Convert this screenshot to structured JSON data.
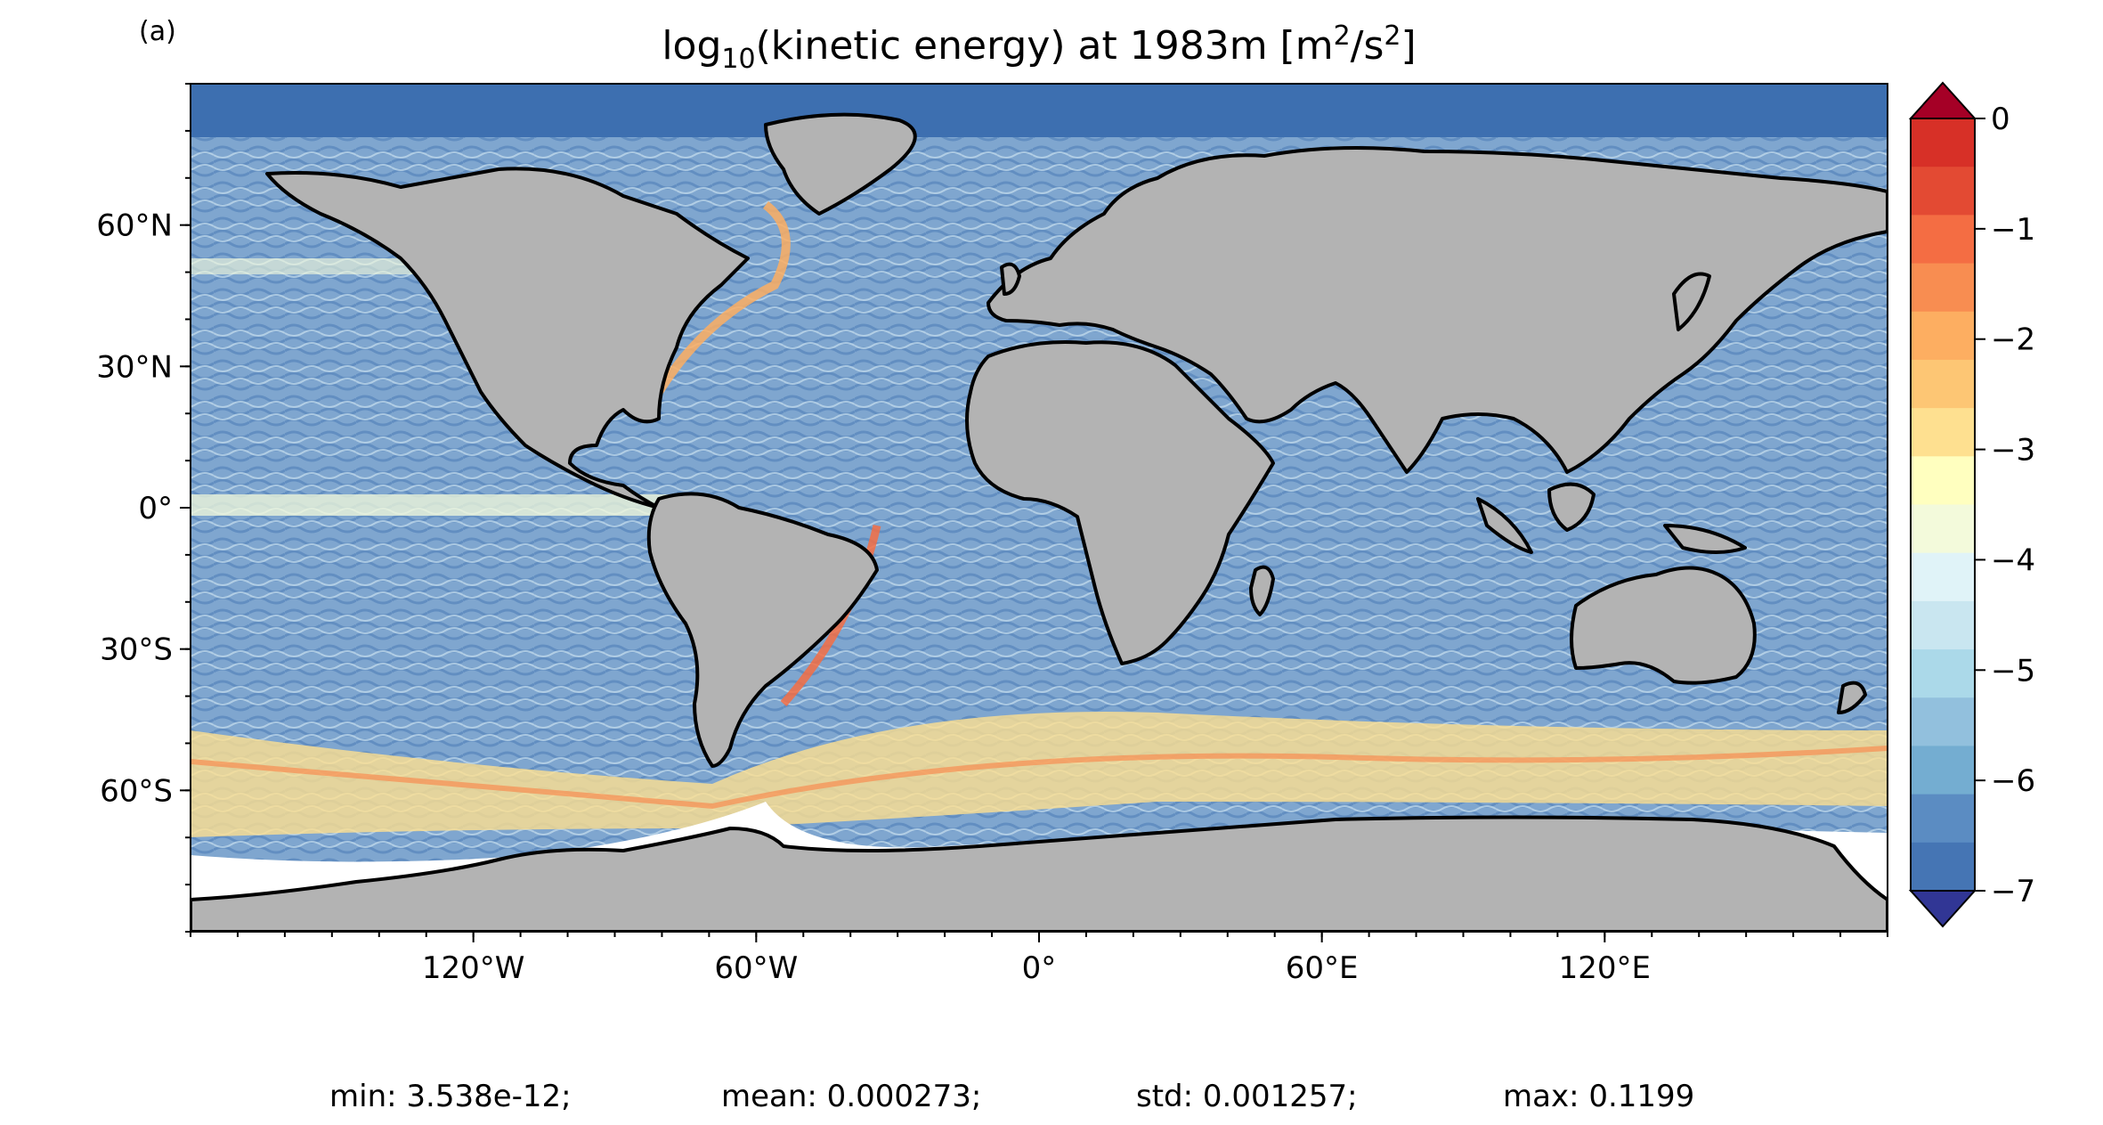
{
  "panel_label": "(a)",
  "title": {
    "prefix": "log",
    "subscript": "10",
    "middle": "(kinetic energy) at 1983m [m",
    "sup1": "2",
    "slash": "/s",
    "sup2": "2",
    "suffix": "]"
  },
  "map": {
    "projection": "plate-carree",
    "land_color": "#b3b3b3",
    "missing_color": "#ffffff",
    "x_ticks": [
      {
        "lon": -120,
        "label": "120°W"
      },
      {
        "lon": -60,
        "label": "60°W"
      },
      {
        "lon": 0,
        "label": "0°"
      },
      {
        "lon": 60,
        "label": "60°E"
      },
      {
        "lon": 120,
        "label": "120°E"
      }
    ],
    "y_ticks": [
      {
        "lat": 60,
        "label": "60°N"
      },
      {
        "lat": 30,
        "label": "30°N"
      },
      {
        "lat": 0,
        "label": "0°"
      },
      {
        "lat": -30,
        "label": "30°S"
      },
      {
        "lat": -60,
        "label": "60°S"
      }
    ],
    "lon_range": [
      -180,
      180
    ],
    "lat_range": [
      -90,
      90
    ]
  },
  "colorbar": {
    "min": -7,
    "max": 0,
    "extend": "both",
    "ticks": [
      "0",
      "−1",
      "−2",
      "−3",
      "−4",
      "−5",
      "−6",
      "−7"
    ],
    "colors": [
      "#313695",
      "#4575b4",
      "#5b8cc2",
      "#74add1",
      "#92c0dd",
      "#abd9e9",
      "#c9e6f0",
      "#e0f3f8",
      "#f3fadb",
      "#ffffbf",
      "#fee090",
      "#fdc674",
      "#fdae61",
      "#f88d51",
      "#f46d43",
      "#e34a33",
      "#d73027",
      "#a50026"
    ]
  },
  "stats": {
    "min": "min: 3.538e-12;",
    "mean": "mean: 0.000273;",
    "std": "std: 0.001257;",
    "max": "max: 0.1199"
  }
}
